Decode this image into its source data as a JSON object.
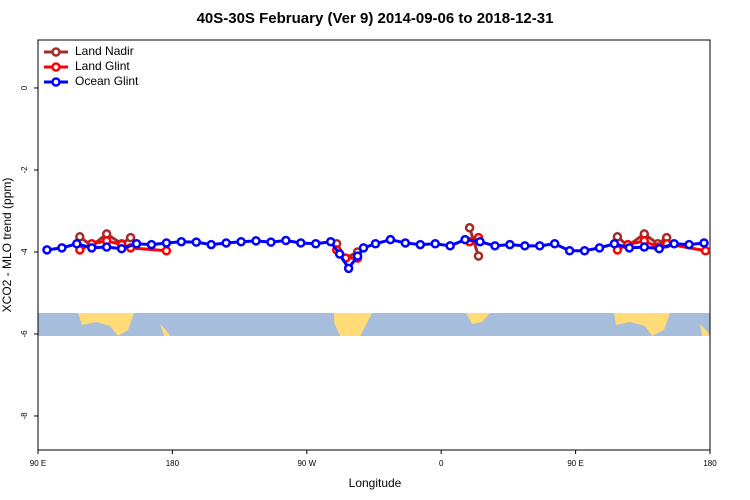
{
  "chart_data": {
    "type": "line",
    "title": "40S-30S February (Ver 9)   2014-09-06 to 2018-12-31",
    "x_label": "Longitude",
    "y_label": "XCO2 - MLO trend (ppm)",
    "xlim": [
      90,
      540
    ],
    "xticks": [
      {
        "value": 90,
        "label": "90 E"
      },
      {
        "value": 180,
        "label": "180"
      },
      {
        "value": 270,
        "label": "90 W"
      },
      {
        "value": 360,
        "label": "0"
      },
      {
        "value": 450,
        "label": "90 E"
      },
      {
        "value": 540,
        "label": "180"
      }
    ],
    "ylim": [
      -8.83,
      1.17
    ],
    "yticks": [
      0,
      -2,
      -4,
      -6,
      -8
    ],
    "legend": "top-left",
    "series": [
      {
        "name": "Land Nadir",
        "color": "#a52a2a",
        "x": [
          118,
          126,
          136,
          146,
          152,
          200,
          290,
          296,
          304,
          340,
          379,
          385,
          430,
          478,
          485,
          496,
          505,
          511
        ],
        "values": [
          -3.63,
          -3.85,
          -3.56,
          -3.8,
          -3.65,
          null,
          -3.8,
          -4.15,
          -4.0,
          null,
          -3.41,
          -4.1,
          null,
          -3.63,
          -3.85,
          -3.56,
          -3.8,
          -3.65
        ]
      },
      {
        "name": "Land Glint",
        "color": "#ff0000",
        "x": [
          118,
          126,
          136,
          146,
          152,
          176,
          230,
          290,
          296,
          304,
          340,
          379,
          385,
          430,
          478,
          485,
          496,
          505,
          511,
          537
        ],
        "values": [
          -3.95,
          -3.8,
          -3.73,
          -3.82,
          -3.9,
          -3.97,
          null,
          -3.95,
          -4.15,
          -4.15,
          null,
          -3.75,
          -3.65,
          null,
          -3.95,
          -3.82,
          -3.73,
          -3.88,
          -3.8,
          -3.97
        ]
      },
      {
        "name": "Ocean Glint",
        "color": "#0000ff",
        "x": [
          96,
          106,
          116,
          126,
          136,
          146,
          156,
          166,
          176,
          186,
          196,
          206,
          216,
          226,
          236,
          246,
          256,
          266,
          276,
          286,
          292,
          298,
          304,
          308,
          316,
          326,
          336,
          346,
          356,
          366,
          376,
          386,
          396,
          406,
          416,
          426,
          436,
          446,
          456,
          466,
          476,
          486,
          496,
          506,
          516,
          526,
          536
        ],
        "values": [
          -3.95,
          -3.9,
          -3.8,
          -3.9,
          -3.88,
          -3.92,
          -3.8,
          -3.82,
          -3.78,
          -3.75,
          -3.76,
          -3.82,
          -3.78,
          -3.75,
          -3.73,
          -3.76,
          -3.72,
          -3.78,
          -3.8,
          -3.75,
          -4.05,
          -4.4,
          -4.1,
          -3.9,
          -3.8,
          -3.7,
          -3.78,
          -3.82,
          -3.8,
          -3.85,
          -3.7,
          -3.75,
          -3.85,
          -3.82,
          -3.85,
          -3.85,
          -3.8,
          -3.97,
          -3.97,
          -3.9,
          -3.8,
          -3.9,
          -3.88,
          -3.92,
          -3.8,
          -3.82,
          -3.78
        ]
      }
    ]
  }
}
